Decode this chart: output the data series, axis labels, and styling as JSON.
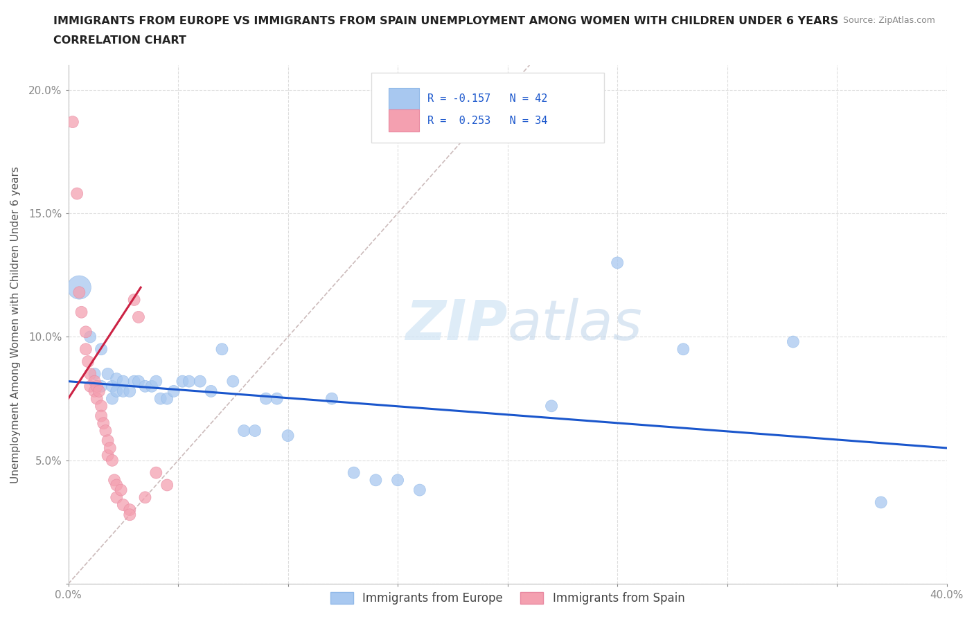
{
  "title_line1": "IMMIGRANTS FROM EUROPE VS IMMIGRANTS FROM SPAIN UNEMPLOYMENT AMONG WOMEN WITH CHILDREN UNDER 6 YEARS",
  "title_line2": "CORRELATION CHART",
  "source": "Source: ZipAtlas.com",
  "ylabel": "Unemployment Among Women with Children Under 6 years",
  "xlim": [
    0.0,
    0.4
  ],
  "ylim": [
    0.0,
    0.21
  ],
  "xticks": [
    0.0,
    0.05,
    0.1,
    0.15,
    0.2,
    0.25,
    0.3,
    0.35,
    0.4
  ],
  "xticklabels": [
    "0.0%",
    "",
    "",
    "",
    "",
    "",
    "",
    "",
    "40.0%"
  ],
  "yticks": [
    0.0,
    0.05,
    0.1,
    0.15,
    0.2
  ],
  "yticklabels": [
    "",
    "5.0%",
    "10.0%",
    "15.0%",
    "20.0%"
  ],
  "blue_R": -0.157,
  "blue_N": 42,
  "pink_R": 0.253,
  "pink_N": 34,
  "legend_label_blue": "Immigrants from Europe",
  "legend_label_pink": "Immigrants from Spain",
  "blue_color": "#a8c8f0",
  "pink_color": "#f4a0b0",
  "blue_line_color": "#1a56cc",
  "pink_line_color": "#cc2244",
  "diagonal_color": "#ccbbbb",
  "watermark_color": "#d0e4f5",
  "blue_scatter": [
    [
      0.005,
      0.12
    ],
    [
      0.01,
      0.1
    ],
    [
      0.012,
      0.085
    ],
    [
      0.015,
      0.095
    ],
    [
      0.015,
      0.08
    ],
    [
      0.018,
      0.085
    ],
    [
      0.02,
      0.08
    ],
    [
      0.02,
      0.075
    ],
    [
      0.022,
      0.083
    ],
    [
      0.022,
      0.078
    ],
    [
      0.025,
      0.082
    ],
    [
      0.025,
      0.078
    ],
    [
      0.028,
      0.078
    ],
    [
      0.03,
      0.082
    ],
    [
      0.032,
      0.082
    ],
    [
      0.035,
      0.08
    ],
    [
      0.038,
      0.08
    ],
    [
      0.04,
      0.082
    ],
    [
      0.042,
      0.075
    ],
    [
      0.045,
      0.075
    ],
    [
      0.048,
      0.078
    ],
    [
      0.052,
      0.082
    ],
    [
      0.055,
      0.082
    ],
    [
      0.06,
      0.082
    ],
    [
      0.065,
      0.078
    ],
    [
      0.07,
      0.095
    ],
    [
      0.075,
      0.082
    ],
    [
      0.08,
      0.062
    ],
    [
      0.085,
      0.062
    ],
    [
      0.09,
      0.075
    ],
    [
      0.095,
      0.075
    ],
    [
      0.1,
      0.06
    ],
    [
      0.12,
      0.075
    ],
    [
      0.13,
      0.045
    ],
    [
      0.14,
      0.042
    ],
    [
      0.15,
      0.042
    ],
    [
      0.16,
      0.038
    ],
    [
      0.22,
      0.072
    ],
    [
      0.25,
      0.13
    ],
    [
      0.28,
      0.095
    ],
    [
      0.33,
      0.098
    ],
    [
      0.37,
      0.033
    ]
  ],
  "blue_sizes": [
    600,
    150,
    150,
    150,
    150,
    150,
    150,
    150,
    150,
    150,
    150,
    150,
    150,
    150,
    150,
    150,
    150,
    150,
    150,
    150,
    150,
    150,
    150,
    150,
    150,
    150,
    150,
    150,
    150,
    150,
    150,
    150,
    150,
    150,
    150,
    150,
    150,
    150,
    150,
    150,
    150,
    150
  ],
  "pink_scatter": [
    [
      0.002,
      0.187
    ],
    [
      0.004,
      0.158
    ],
    [
      0.005,
      0.118
    ],
    [
      0.006,
      0.11
    ],
    [
      0.008,
      0.102
    ],
    [
      0.008,
      0.095
    ],
    [
      0.009,
      0.09
    ],
    [
      0.01,
      0.085
    ],
    [
      0.01,
      0.08
    ],
    [
      0.012,
      0.082
    ],
    [
      0.012,
      0.078
    ],
    [
      0.013,
      0.08
    ],
    [
      0.013,
      0.075
    ],
    [
      0.014,
      0.078
    ],
    [
      0.015,
      0.072
    ],
    [
      0.015,
      0.068
    ],
    [
      0.016,
      0.065
    ],
    [
      0.017,
      0.062
    ],
    [
      0.018,
      0.058
    ],
    [
      0.018,
      0.052
    ],
    [
      0.019,
      0.055
    ],
    [
      0.02,
      0.05
    ],
    [
      0.021,
      0.042
    ],
    [
      0.022,
      0.04
    ],
    [
      0.022,
      0.035
    ],
    [
      0.024,
      0.038
    ],
    [
      0.025,
      0.032
    ],
    [
      0.028,
      0.03
    ],
    [
      0.028,
      0.028
    ],
    [
      0.03,
      0.115
    ],
    [
      0.032,
      0.108
    ],
    [
      0.035,
      0.035
    ],
    [
      0.04,
      0.045
    ],
    [
      0.045,
      0.04
    ]
  ],
  "pink_sizes": [
    150,
    150,
    150,
    150,
    150,
    150,
    150,
    150,
    150,
    150,
    150,
    150,
    150,
    150,
    150,
    150,
    150,
    150,
    150,
    150,
    150,
    150,
    150,
    150,
    150,
    150,
    150,
    150,
    150,
    150,
    150,
    150,
    150,
    150
  ],
  "blue_line_start_x": 0.0,
  "blue_line_end_x": 0.4,
  "blue_line_start_y": 0.082,
  "blue_line_end_y": 0.055,
  "pink_line_start_x": 0.0,
  "pink_line_end_x": 0.033,
  "pink_line_start_y": 0.075,
  "pink_line_end_y": 0.12
}
